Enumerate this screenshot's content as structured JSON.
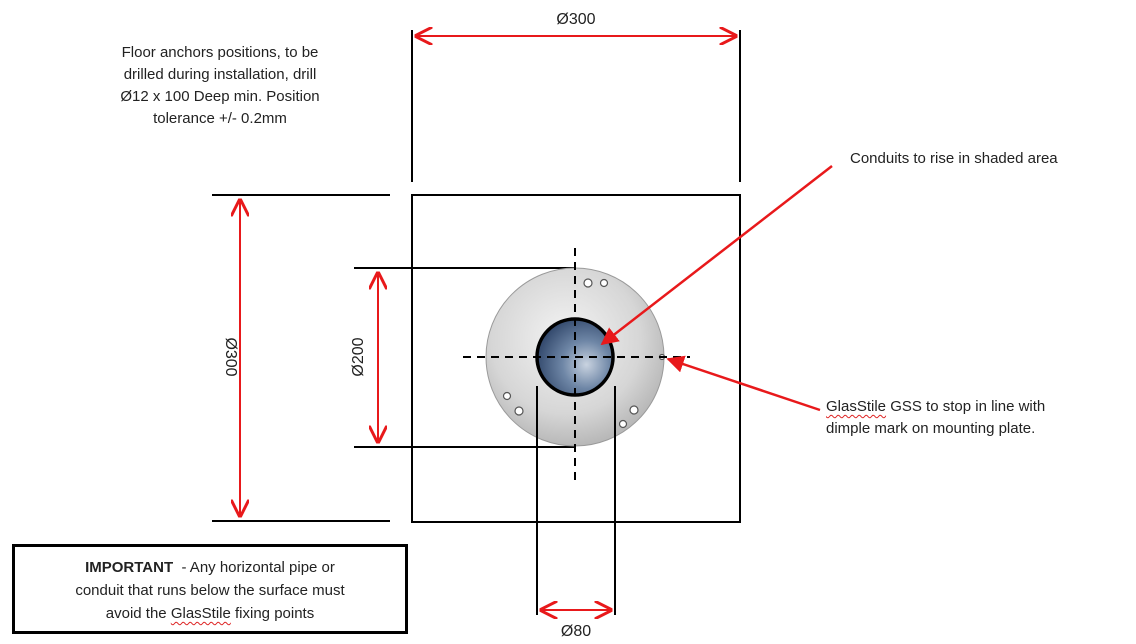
{
  "dimensions": {
    "top_width": "Ø300",
    "left_height": "Ø300",
    "plate_diameter": "Ø200",
    "conduit_width": "Ø80"
  },
  "notes": {
    "anchors_line1": "Floor anchors positions,  to be",
    "anchors_line2": "drilled during installation, drill",
    "anchors_line3": "Ø12 x 100 Deep min. Position",
    "anchors_line4": "tolerance +/- 0.2mm",
    "conduits": "Conduits to rise in shaded area",
    "glasstile_brand": "GlasStile",
    "glasstile_line1_rest": " GSS to stop in line with",
    "glasstile_line2": "dimple mark on mounting plate."
  },
  "important": {
    "heading": "IMPORTANT",
    "line1_rest": "  - Any horizontal pipe or",
    "line2": "conduit that runs below the surface must",
    "line3_pre": "avoid the ",
    "line3_brand": "GlasStile",
    "line3_post": " fixing points"
  },
  "colors": {
    "arrow_red": "#e8191b",
    "plate_gray": "#cfcfcf",
    "conduit_blue": "#4a6688"
  }
}
